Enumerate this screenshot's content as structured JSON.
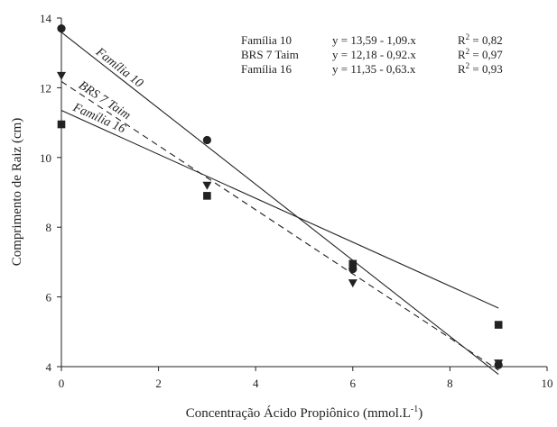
{
  "chart_data": {
    "type": "scatter",
    "xlabel": "Concentração Ácido Propiônico (mmol.L",
    "xlabel_sup": "-1",
    "xlabel_close": ")",
    "ylabel": "Comprimento de Raiz (cm)",
    "xlim": [
      0,
      10
    ],
    "ylim": [
      4,
      14
    ],
    "xticks": [
      0,
      2,
      4,
      6,
      8,
      10
    ],
    "yticks": [
      4,
      6,
      8,
      10,
      12,
      14
    ],
    "grid": false,
    "legend_placement": "top-right",
    "series": [
      {
        "name": "Família 10",
        "marker": "circle",
        "line_style": "solid",
        "x": [
          0,
          3,
          6,
          9
        ],
        "y": [
          13.7,
          10.5,
          6.8,
          4.05
        ],
        "fit": {
          "intercept": 13.59,
          "slope": -1.09
        },
        "equation": "y = 13,59 - 1,09.x",
        "r2_label": "R",
        "r2_sup": "2",
        "r2_value": " = 0,82"
      },
      {
        "name": "BRS 7 Taim",
        "marker": "triangle-down",
        "line_style": "dashed",
        "x": [
          0,
          3,
          6,
          9
        ],
        "y": [
          12.35,
          9.2,
          6.4,
          4.1
        ],
        "fit": {
          "intercept": 12.18,
          "slope": -0.92
        },
        "equation": "y = 12,18 - 0,92.x",
        "r2_label": "R",
        "r2_sup": "2",
        "r2_value": " = 0,97"
      },
      {
        "name": "Família 16",
        "marker": "square",
        "line_style": "solid",
        "x": [
          0,
          3,
          6,
          9
        ],
        "y": [
          10.95,
          8.9,
          6.95,
          5.2
        ],
        "fit": {
          "intercept": 11.35,
          "slope": -0.63
        },
        "equation": "y = 11,35 - 0,63.x",
        "r2_label": "R",
        "r2_sup": "2",
        "r2_value": " = 0,93"
      }
    ]
  },
  "colors": {
    "ink": "#222222"
  }
}
